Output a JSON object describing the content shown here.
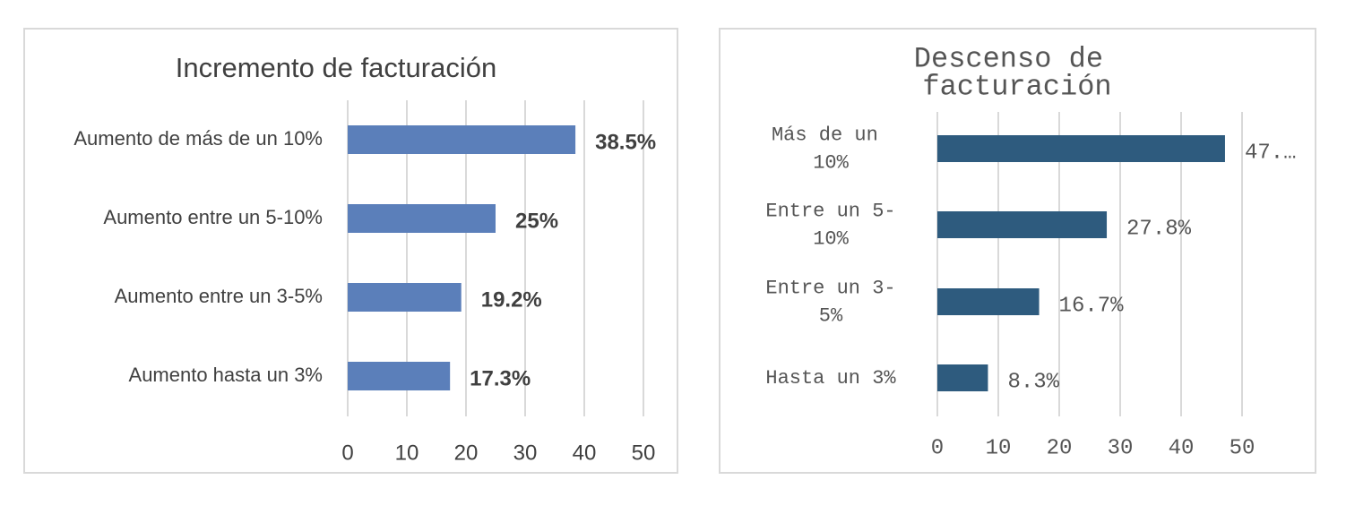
{
  "chart_data": [
    {
      "type": "bar",
      "title": "Incremento de facturación",
      "categories": [
        "Aumento de más de un 10%",
        "Aumento entre un 5-10%",
        "Aumento entre un 3-5%",
        "Aumento hasta un 3%"
      ],
      "values": [
        38.5,
        25,
        19.2,
        17.3
      ],
      "value_labels": [
        "38.5%",
        "25%",
        "19.2%",
        "17.3%"
      ],
      "color": "#5b7fba",
      "xlim": [
        0,
        50
      ],
      "xticks": [
        0,
        10,
        20,
        30,
        40,
        50
      ],
      "grid": true
    },
    {
      "type": "bar",
      "title": "Descenso de facturación",
      "categories": [
        "Más de un 10%",
        "Entre un 5-10%",
        "Entre un 3-5%",
        "Hasta un 3%"
      ],
      "values": [
        47.2,
        27.8,
        16.7,
        8.3
      ],
      "value_labels": [
        "47.…",
        "27.8%",
        "16.7%",
        "8.3%"
      ],
      "color": "#2e5b7e",
      "xlim": [
        0,
        50
      ],
      "xticks": [
        0,
        10,
        20,
        30,
        40,
        50
      ],
      "grid": true
    }
  ]
}
